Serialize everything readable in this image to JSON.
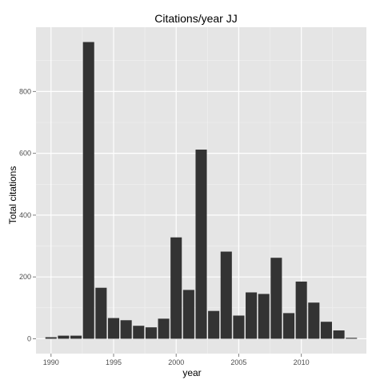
{
  "chart_data": {
    "type": "bar",
    "title": "Citations/year JJ",
    "xlabel": "year",
    "ylabel": "Total citations",
    "x": [
      1990,
      1991,
      1992,
      1993,
      1994,
      1995,
      1996,
      1997,
      1998,
      1999,
      2000,
      2001,
      2002,
      2003,
      2004,
      2005,
      2006,
      2007,
      2008,
      2009,
      2010,
      2011,
      2012,
      2013,
      2014
    ],
    "values": [
      5,
      10,
      10,
      960,
      165,
      67,
      60,
      42,
      37,
      65,
      328,
      158,
      612,
      90,
      282,
      75,
      150,
      145,
      262,
      83,
      185,
      117,
      55,
      27,
      3
    ],
    "xlim": [
      1988.8,
      2015.2
    ],
    "ylim": [
      -48,
      1008
    ],
    "xticks": [
      1990,
      1995,
      2000,
      2005,
      2010
    ],
    "xtick_labels": [
      "1990",
      "1995",
      "2000",
      "2005",
      "2010"
    ],
    "yticks": [
      0,
      200,
      400,
      600,
      800
    ],
    "ytick_labels": [
      "0",
      "200",
      "400",
      "600",
      "800"
    ],
    "grid": true,
    "colors": {
      "panel_background": "#e5e5e5",
      "grid_major": "#ffffff",
      "grid_minor": "#f2f2f2",
      "bar": "#333333"
    }
  }
}
